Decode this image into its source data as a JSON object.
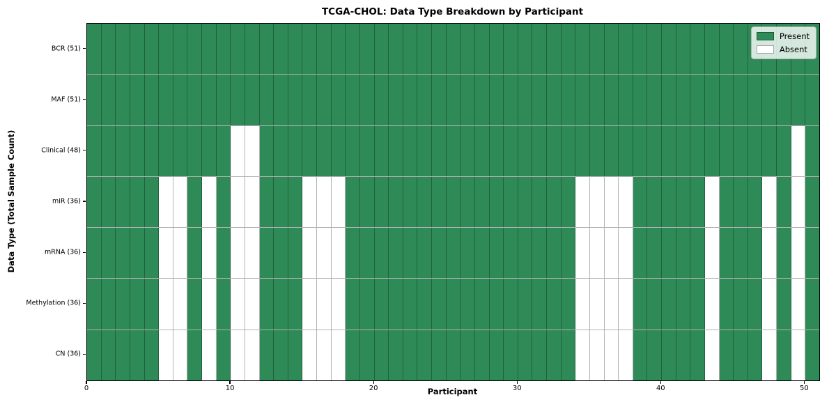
{
  "chart_data": {
    "type": "heatmap",
    "title": "TCGA-CHOL: Data Type Breakdown by Participant",
    "xlabel": "Participant",
    "ylabel": "Data Type (Total Sample Count)",
    "n_participants": 51,
    "xlim": [
      0,
      51
    ],
    "x_ticks": [
      0,
      10,
      20,
      30,
      40,
      50
    ],
    "grid": true,
    "colors": {
      "present": "#2e8b57",
      "absent": "#ffffff",
      "cell_edge": "rgba(0,0,0,0.30)"
    },
    "legend": {
      "position": "upper right",
      "entries": [
        {
          "label": "Present",
          "color": "#2e8b57"
        },
        {
          "label": "Absent",
          "color": "#ffffff"
        }
      ]
    },
    "rows": [
      {
        "label": "BCR (51)",
        "present_count": 51,
        "absent_participants": []
      },
      {
        "label": "MAF (51)",
        "present_count": 51,
        "absent_participants": []
      },
      {
        "label": "Clinical (48)",
        "present_count": 48,
        "absent_participants": [
          10,
          11,
          49
        ]
      },
      {
        "label": "miR (36)",
        "present_count": 36,
        "absent_participants": [
          5,
          6,
          8,
          10,
          11,
          15,
          16,
          17,
          34,
          35,
          36,
          37,
          43,
          47,
          49
        ]
      },
      {
        "label": "mRNA (36)",
        "present_count": 36,
        "absent_participants": [
          5,
          6,
          8,
          10,
          11,
          15,
          16,
          17,
          34,
          35,
          36,
          37,
          43,
          47,
          49
        ]
      },
      {
        "label": "Methylation (36)",
        "present_count": 36,
        "absent_participants": [
          5,
          6,
          8,
          10,
          11,
          15,
          16,
          17,
          34,
          35,
          36,
          37,
          43,
          47,
          49
        ]
      },
      {
        "label": "CN (36)",
        "present_count": 36,
        "absent_participants": [
          5,
          6,
          8,
          10,
          11,
          15,
          16,
          17,
          34,
          35,
          36,
          37,
          43,
          47,
          49
        ]
      }
    ]
  }
}
